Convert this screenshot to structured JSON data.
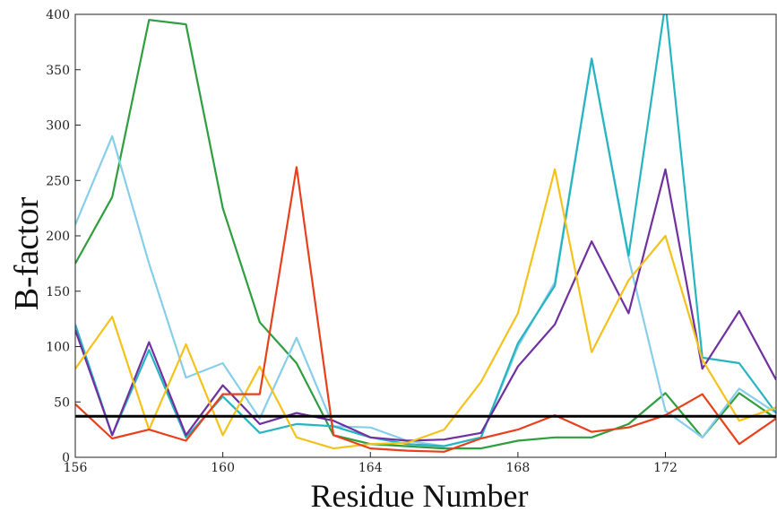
{
  "chart_data": {
    "type": "line",
    "xlabel": "Residue Number",
    "ylabel": "B-factor",
    "xlim": [
      156,
      175
    ],
    "ylim": [
      0,
      400
    ],
    "x_ticks": [
      156,
      160,
      164,
      168,
      172
    ],
    "y_ticks": [
      0,
      50,
      100,
      150,
      200,
      250,
      300,
      350,
      400
    ],
    "grid": false,
    "legend": "none",
    "x": [
      156,
      157,
      158,
      159,
      160,
      161,
      162,
      163,
      164,
      165,
      166,
      167,
      168,
      169,
      170,
      171,
      172,
      173,
      174,
      175
    ],
    "reference_line": {
      "y": 37,
      "color": "#000000"
    },
    "series": [
      {
        "color": "#2e9e3e",
        "values": [
          175,
          235,
          395,
          391,
          225,
          122,
          85,
          20,
          12,
          10,
          8,
          8,
          15,
          18,
          18,
          30,
          58,
          18,
          58,
          35
        ]
      },
      {
        "color": "#87ceeb",
        "values": [
          210,
          290,
          175,
          72,
          85,
          35,
          108,
          28,
          27,
          15,
          10,
          18,
          100,
          158,
          360,
          180,
          42,
          18,
          62,
          40
        ]
      },
      {
        "color": "#26b5c0",
        "values": [
          120,
          20,
          97,
          18,
          55,
          22,
          30,
          28,
          18,
          12,
          10,
          18,
          103,
          155,
          360,
          182,
          410,
          90,
          85,
          40
        ]
      },
      {
        "color": "#7030a0",
        "values": [
          115,
          20,
          104,
          20,
          65,
          30,
          40,
          33,
          18,
          15,
          16,
          22,
          82,
          120,
          195,
          130,
          260,
          80,
          132,
          70
        ]
      },
      {
        "color": "#f5c21b",
        "values": [
          80,
          127,
          25,
          102,
          20,
          82,
          18,
          8,
          12,
          13,
          25,
          68,
          130,
          260,
          95,
          160,
          200,
          88,
          33,
          45
        ]
      },
      {
        "color": "#e8401c",
        "values": [
          48,
          17,
          25,
          15,
          57,
          57,
          262,
          20,
          8,
          6,
          5,
          17,
          25,
          38,
          23,
          27,
          38,
          57,
          12,
          35
        ]
      }
    ]
  }
}
